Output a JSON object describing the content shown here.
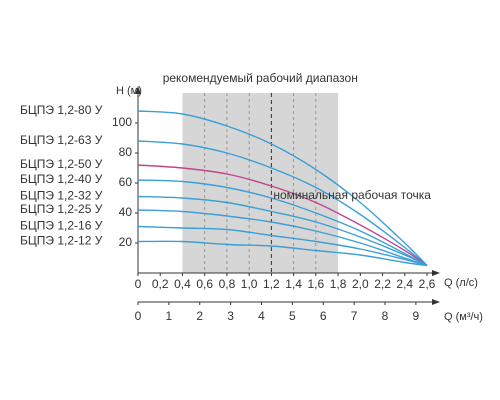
{
  "chart_data": {
    "type": "line",
    "y_label": "H (м)",
    "x_label": "Q (л/с)",
    "x2_label": "Q (м³/ч)",
    "range_label": "рекомендуемый рабочий диапазон",
    "nominal_label": "номинальная рабочая точка",
    "range": [
      0.4,
      1.8
    ],
    "nominal_q": 1.2,
    "xlim": [
      0,
      2.6
    ],
    "xticks": [
      0,
      {
        "value": 0.2,
        "label": "0,2"
      },
      {
        "value": 0.4,
        "label": "0,4"
      },
      {
        "value": 0.6,
        "label": "0,6"
      },
      {
        "value": 0.8,
        "label": "0,8"
      },
      {
        "value": 1.0,
        "label": "1,0"
      },
      {
        "value": 1.2,
        "label": "1,2"
      },
      {
        "value": 1.4,
        "label": "1,4"
      },
      {
        "value": 1.6,
        "label": "1,6"
      },
      {
        "value": 1.8,
        "label": "1,8"
      },
      {
        "value": 2.0,
        "label": "2,0"
      },
      {
        "value": 2.2,
        "label": "2,2"
      },
      {
        "value": 2.4,
        "label": "2,4"
      },
      {
        "value": 2.6,
        "label": "2,6"
      }
    ],
    "x2lim": [
      0,
      9.36
    ],
    "x2ticks": [
      0,
      1,
      2,
      3,
      4,
      5,
      6,
      7,
      8,
      9
    ],
    "ylim": [
      0,
      120
    ],
    "yticks": [
      20,
      40,
      60,
      80,
      100
    ],
    "x": [
      0,
      0.4,
      0.8,
      1.2,
      1.6,
      2.0,
      2.4,
      2.6
    ],
    "series": [
      {
        "name": "БЦПЭ 1,2-80 У",
        "color": "#3a9fd6",
        "values": [
          108,
          106,
          98,
          86,
          69,
          47,
          20,
          5
        ]
      },
      {
        "name": "БЦПЭ 1,2-63 У",
        "color": "#3a9fd6",
        "values": [
          88,
          86,
          80,
          70,
          57,
          39,
          17,
          5
        ]
      },
      {
        "name": "БЦПЭ 1,2-50 У",
        "color": "#c2448e",
        "values": [
          72,
          70,
          66,
          58,
          47,
          32,
          15,
          5
        ]
      },
      {
        "name": "БЦПЭ 1,2-40 У",
        "color": "#3a9fd6",
        "values": [
          62,
          61,
          57,
          50,
          40,
          28,
          13,
          5
        ]
      },
      {
        "name": "БЦПЭ 1,2-32 У",
        "color": "#3a9fd6",
        "values": [
          51,
          50,
          47,
          41,
          34,
          24,
          12,
          5
        ]
      },
      {
        "name": "БЦПЭ 1,2-25 У",
        "color": "#3a9fd6",
        "values": [
          42,
          41,
          38,
          34,
          28,
          20,
          10,
          5
        ]
      },
      {
        "name": "БЦПЭ 1,2-16 У",
        "color": "#3a9fd6",
        "values": [
          31,
          30,
          29,
          25,
          21,
          16,
          9,
          5
        ]
      },
      {
        "name": "БЦПЭ 1,2-12 У",
        "color": "#3a9fd6",
        "values": [
          21,
          21,
          19,
          18,
          15,
          12,
          7,
          5
        ]
      }
    ]
  }
}
